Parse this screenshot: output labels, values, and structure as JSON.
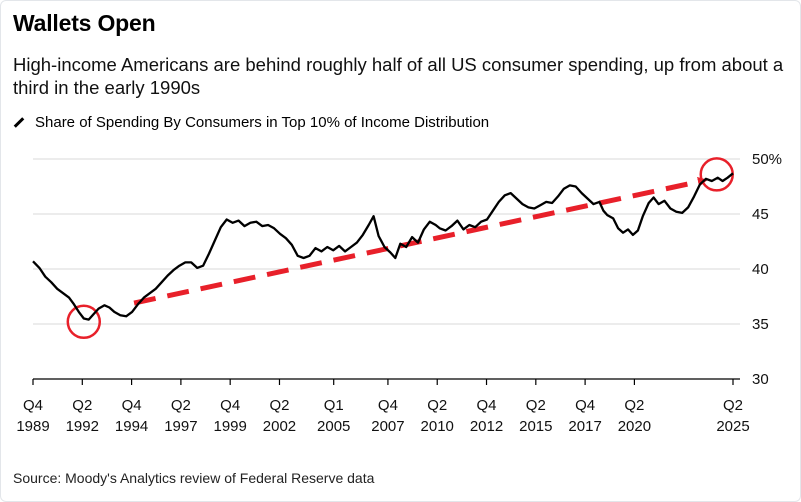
{
  "chart_data": {
    "type": "line",
    "title": "Wallets Open",
    "subtitle": "High-income Americans are behind roughly half of all US consumer spending, up from about a third in the early 1990s",
    "legend": {
      "label": "Share of Spending By Consumers in Top 10% of Income Distribution",
      "placement": "top-left"
    },
    "source": "Source: Moody's Analytics review of Federal Reserve data",
    "ylabel": "",
    "xlabel": "",
    "ylim": [
      30,
      50
    ],
    "xlim": [
      1989.875,
      2025.6
    ],
    "y_ticks": [
      {
        "value": 50,
        "label": "50%"
      },
      {
        "value": 45,
        "label": "45"
      },
      {
        "value": 40,
        "label": "40"
      },
      {
        "value": 35,
        "label": "35"
      },
      {
        "value": 30,
        "label": "30"
      }
    ],
    "x_ticks": [
      {
        "value": 1989.875,
        "top": "Q4",
        "bottom": "1989"
      },
      {
        "value": 1992.375,
        "top": "Q2",
        "bottom": "1992"
      },
      {
        "value": 1994.875,
        "top": "Q4",
        "bottom": "1994"
      },
      {
        "value": 1997.375,
        "top": "Q2",
        "bottom": "1997"
      },
      {
        "value": 1999.875,
        "top": "Q4",
        "bottom": "1999"
      },
      {
        "value": 2002.375,
        "top": "Q2",
        "bottom": "2002"
      },
      {
        "value": 2005.125,
        "top": "Q1",
        "bottom": "2005"
      },
      {
        "value": 2007.875,
        "top": "Q4",
        "bottom": "2007"
      },
      {
        "value": 2010.375,
        "top": "Q2",
        "bottom": "2010"
      },
      {
        "value": 2012.875,
        "top": "Q4",
        "bottom": "2012"
      },
      {
        "value": 2015.375,
        "top": "Q2",
        "bottom": "2015"
      },
      {
        "value": 2017.875,
        "top": "Q4",
        "bottom": "2017"
      },
      {
        "value": 2020.375,
        "top": "Q2",
        "bottom": "2020"
      },
      {
        "value": 2025.375,
        "top": "Q2",
        "bottom": "2025"
      }
    ],
    "grid": true,
    "colors": {
      "line": "#000000",
      "annotation": "#e8202a",
      "grid": "#d9d9d9"
    },
    "series": [
      {
        "points": [
          [
            1989.875,
            40.7
          ],
          [
            1990.2,
            40.1
          ],
          [
            1990.5,
            39.3
          ],
          [
            1990.8,
            38.8
          ],
          [
            1991.1,
            38.2
          ],
          [
            1991.4,
            37.8
          ],
          [
            1991.7,
            37.4
          ],
          [
            1991.95,
            36.8
          ],
          [
            1992.2,
            36.1
          ],
          [
            1992.45,
            35.5
          ],
          [
            1992.7,
            35.4
          ],
          [
            1992.95,
            35.9
          ],
          [
            1993.2,
            36.4
          ],
          [
            1993.5,
            36.7
          ],
          [
            1993.75,
            36.5
          ],
          [
            1994.0,
            36.1
          ],
          [
            1994.3,
            35.8
          ],
          [
            1994.6,
            35.7
          ],
          [
            1994.9,
            36.1
          ],
          [
            1995.2,
            36.8
          ],
          [
            1995.5,
            37.4
          ],
          [
            1995.8,
            37.8
          ],
          [
            1996.1,
            38.2
          ],
          [
            1996.4,
            38.8
          ],
          [
            1996.7,
            39.4
          ],
          [
            1997.0,
            39.9
          ],
          [
            1997.3,
            40.3
          ],
          [
            1997.6,
            40.6
          ],
          [
            1997.9,
            40.6
          ],
          [
            1998.2,
            40.1
          ],
          [
            1998.5,
            40.3
          ],
          [
            1998.8,
            41.4
          ],
          [
            1999.1,
            42.6
          ],
          [
            1999.4,
            43.8
          ],
          [
            1999.7,
            44.5
          ],
          [
            2000.0,
            44.2
          ],
          [
            2000.3,
            44.4
          ],
          [
            2000.6,
            43.9
          ],
          [
            2000.9,
            44.2
          ],
          [
            2001.2,
            44.3
          ],
          [
            2001.5,
            43.9
          ],
          [
            2001.8,
            44.0
          ],
          [
            2002.1,
            43.7
          ],
          [
            2002.4,
            43.2
          ],
          [
            2002.7,
            42.8
          ],
          [
            2003.0,
            42.2
          ],
          [
            2003.3,
            41.2
          ],
          [
            2003.6,
            41.0
          ],
          [
            2003.9,
            41.2
          ],
          [
            2004.2,
            41.9
          ],
          [
            2004.5,
            41.6
          ],
          [
            2004.8,
            42.0
          ],
          [
            2005.1,
            41.7
          ],
          [
            2005.4,
            42.1
          ],
          [
            2005.7,
            41.6
          ],
          [
            2006.0,
            42.0
          ],
          [
            2006.3,
            42.4
          ],
          [
            2006.6,
            43.1
          ],
          [
            2006.9,
            44.0
          ],
          [
            2007.15,
            44.8
          ],
          [
            2007.4,
            43.0
          ],
          [
            2007.7,
            42.0
          ],
          [
            2008.0,
            41.5
          ],
          [
            2008.25,
            41.0
          ],
          [
            2008.5,
            42.3
          ],
          [
            2008.8,
            42.0
          ],
          [
            2009.1,
            42.9
          ],
          [
            2009.4,
            42.4
          ],
          [
            2009.7,
            43.6
          ],
          [
            2010.0,
            44.3
          ],
          [
            2010.3,
            44.0
          ],
          [
            2010.5,
            43.7
          ],
          [
            2010.8,
            43.5
          ],
          [
            2011.1,
            43.9
          ],
          [
            2011.4,
            44.4
          ],
          [
            2011.7,
            43.6
          ],
          [
            2012.0,
            44.0
          ],
          [
            2012.3,
            43.8
          ],
          [
            2012.6,
            44.3
          ],
          [
            2012.9,
            44.5
          ],
          [
            2013.2,
            45.3
          ],
          [
            2013.5,
            46.1
          ],
          [
            2013.8,
            46.7
          ],
          [
            2014.1,
            46.9
          ],
          [
            2014.4,
            46.4
          ],
          [
            2014.7,
            45.9
          ],
          [
            2015.0,
            45.6
          ],
          [
            2015.3,
            45.5
          ],
          [
            2015.6,
            45.8
          ],
          [
            2015.9,
            46.1
          ],
          [
            2016.2,
            46.0
          ],
          [
            2016.5,
            46.6
          ],
          [
            2016.8,
            47.3
          ],
          [
            2017.1,
            47.6
          ],
          [
            2017.4,
            47.5
          ],
          [
            2017.7,
            46.9
          ],
          [
            2018.0,
            46.4
          ],
          [
            2018.3,
            45.9
          ],
          [
            2018.6,
            46.1
          ],
          [
            2018.8,
            45.3
          ],
          [
            2019.0,
            44.9
          ],
          [
            2019.3,
            44.6
          ],
          [
            2019.55,
            43.7
          ],
          [
            2019.8,
            43.3
          ],
          [
            2020.05,
            43.6
          ],
          [
            2020.3,
            43.1
          ],
          [
            2020.55,
            43.5
          ],
          [
            2020.8,
            44.8
          ],
          [
            2021.1,
            46.0
          ],
          [
            2021.35,
            46.5
          ],
          [
            2021.6,
            45.9
          ],
          [
            2021.9,
            46.2
          ],
          [
            2022.2,
            45.5
          ],
          [
            2022.5,
            45.2
          ],
          [
            2022.8,
            45.1
          ],
          [
            2023.1,
            45.6
          ],
          [
            2023.4,
            46.6
          ],
          [
            2023.7,
            47.7
          ],
          [
            2024.0,
            48.2
          ],
          [
            2024.3,
            48.0
          ],
          [
            2024.6,
            48.3
          ],
          [
            2024.85,
            48.0
          ],
          [
            2025.1,
            48.3
          ],
          [
            2025.375,
            48.7
          ]
        ]
      }
    ],
    "annotations": {
      "trend_arrow": {
        "from": [
          1995.0,
          36.9
        ],
        "to": [
          2023.8,
          48.0
        ]
      },
      "circles": [
        {
          "x": 1992.45,
          "y": 35.2
        },
        {
          "x": 2024.55,
          "y": 48.6
        }
      ]
    }
  }
}
